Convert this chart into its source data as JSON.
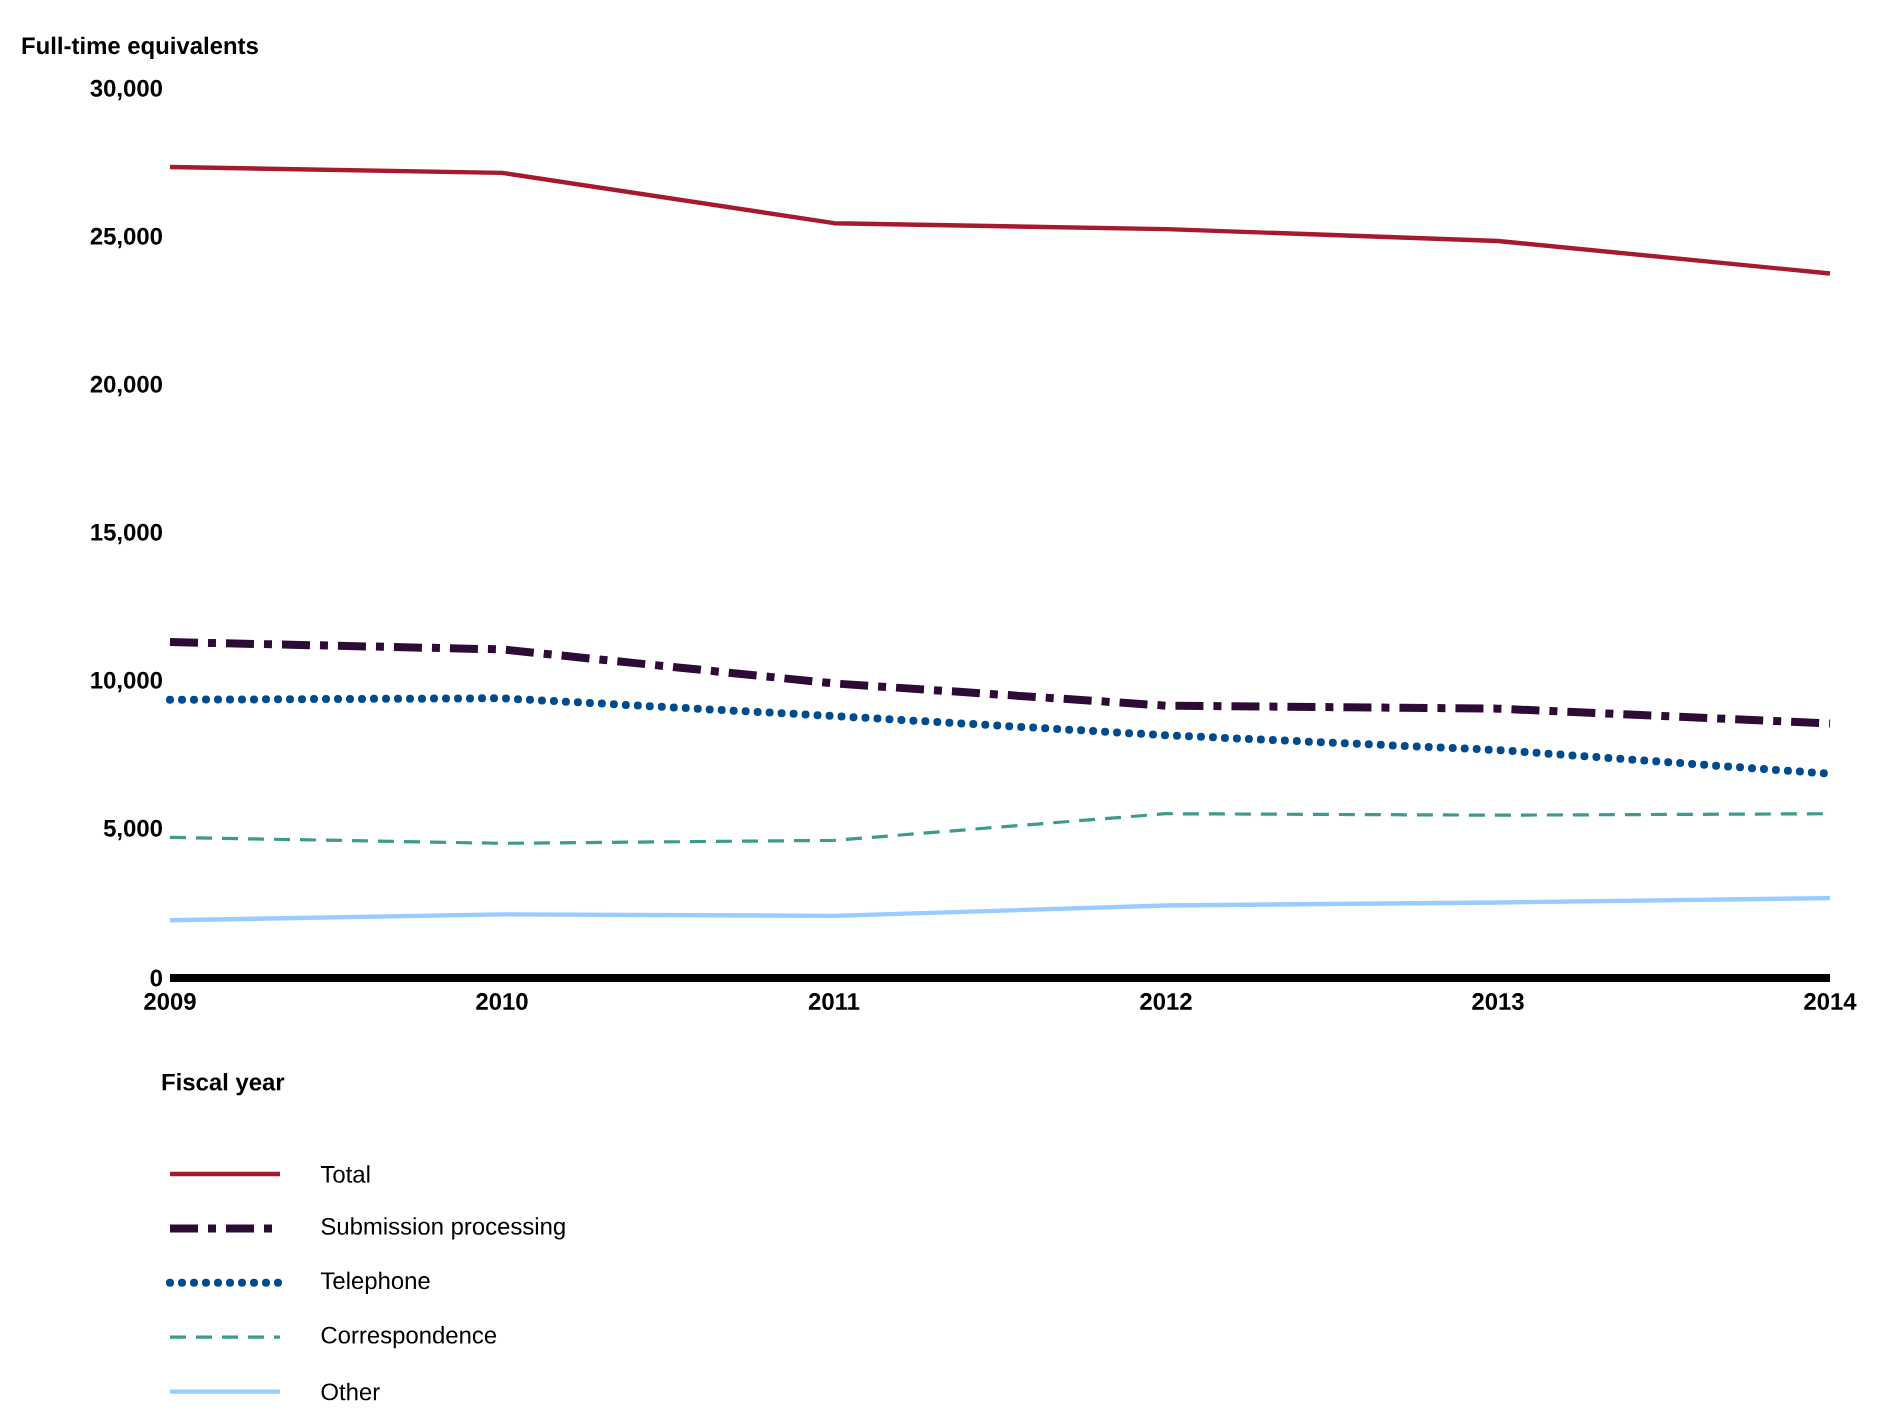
{
  "chart_data": {
    "type": "line",
    "ylabel": "Full-time equivalents",
    "xlabel": "Fiscal year",
    "x": [
      2009,
      2010,
      2011,
      2012,
      2013,
      2014
    ],
    "xlim": [
      2009,
      2014
    ],
    "xticks": [
      2009,
      2010,
      2011,
      2012,
      2013,
      2014
    ],
    "ylim": [
      0,
      30000
    ],
    "yticks": [
      {
        "value": 0,
        "label": "0"
      },
      {
        "value": 5000,
        "label": "5,000"
      },
      {
        "value": 10000,
        "label": "10,000"
      },
      {
        "value": 15000,
        "label": "15,000"
      },
      {
        "value": 20000,
        "label": "20,000"
      },
      {
        "value": 25000,
        "label": "25,000"
      },
      {
        "value": 30000,
        "label": "30,000"
      }
    ],
    "grid": false,
    "legend": "bottom",
    "marker": "none",
    "series": [
      {
        "name": "Total",
        "color": "#a6192e",
        "line_style": "solid",
        "values": [
          27400,
          27200,
          25500,
          25300,
          24900,
          23800
        ]
      },
      {
        "name": "Submission processing",
        "color": "#2e0a36",
        "line_style": "dashdot",
        "values": [
          11350,
          11100,
          9950,
          9200,
          9100,
          8600
        ]
      },
      {
        "name": "Telephone",
        "color": "#004b8d",
        "line_style": "dotted",
        "values": [
          9400,
          9450,
          8850,
          8200,
          7700,
          6900
        ]
      },
      {
        "name": "Correspondence",
        "color": "#3c9a8f",
        "line_style": "dashed",
        "values": [
          4750,
          4550,
          4650,
          5550,
          5500,
          5550
        ]
      },
      {
        "name": "Other",
        "color": "#99ccff",
        "line_style": "solid",
        "values": [
          1950,
          2150,
          2100,
          2450,
          2550,
          2700
        ]
      }
    ]
  }
}
